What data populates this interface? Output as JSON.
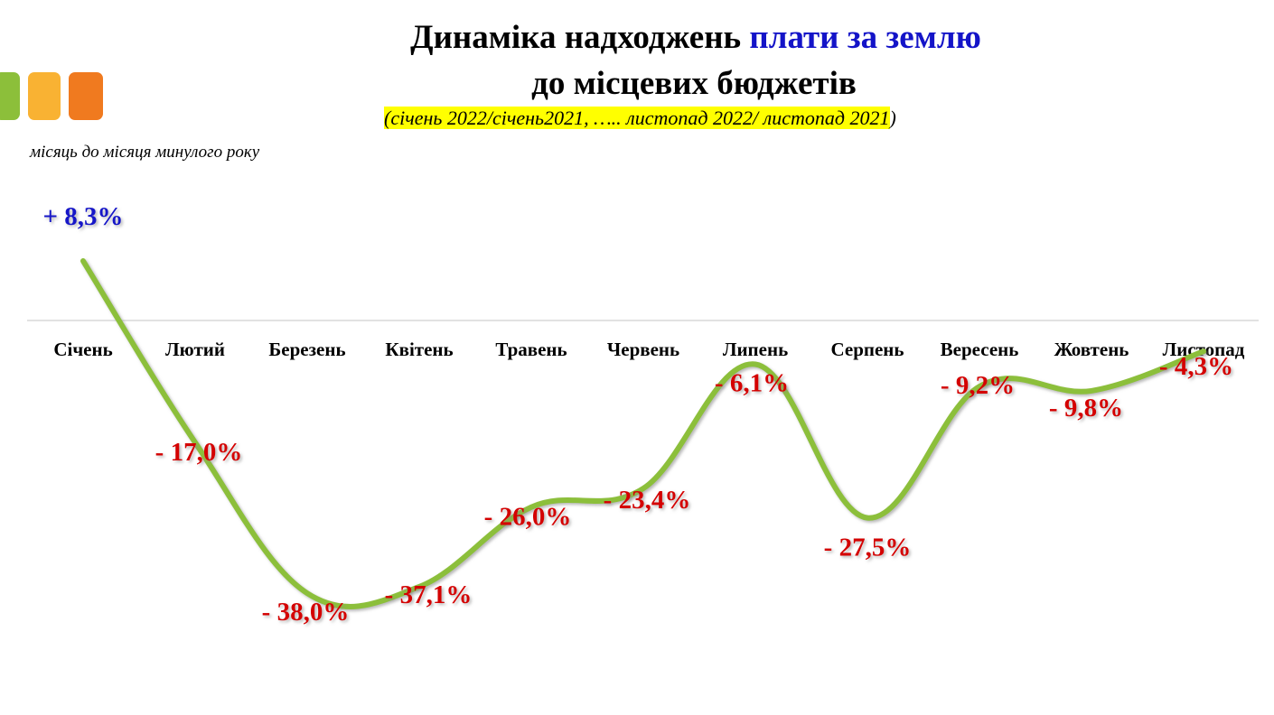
{
  "title": {
    "part1": "Динаміка надходжень ",
    "part2": "плати за землю",
    "line2": "до місцевих бюджетів",
    "subtitle_open": "(",
    "subtitle_main": "січень 2022/січень2021, ….. листопад 2022/ листопад 2021",
    "subtitle_close": ")"
  },
  "note": "місяць до місяця минулого року",
  "colors": {
    "line": "#8cbf3a",
    "positive_label": "#1414c8",
    "negative_label": "#d40000",
    "title_accent": "#1414c8",
    "highlight": "#ffff00",
    "deco": [
      "#8cbf3a",
      "#f9b233",
      "#f07a1f"
    ]
  },
  "chart_data": {
    "type": "line",
    "title": "Динаміка надходжень плати за землю до місцевих бюджетів",
    "categories": [
      "Січень",
      "Лютий",
      "Березень",
      "Квітень",
      "Травень",
      "Червень",
      "Липень",
      "Серпень",
      "Вересень",
      "Жовтень",
      "Листопад"
    ],
    "values": [
      8.3,
      -17.0,
      -38.0,
      -37.1,
      -26.0,
      -23.4,
      -6.1,
      -27.5,
      -9.2,
      -9.8,
      -4.3
    ],
    "data_labels": [
      "+ 8,3%",
      "- 17,0%",
      "- 38,0%",
      "- 37,1%",
      "- 26,0%",
      "- 23,4%",
      "- 6,1%",
      "- 27,5%",
      "- 9,2%",
      "- 9,8%",
      "- 4,3%"
    ],
    "unit": "%",
    "xlabel": "",
    "ylabel": "",
    "grid": false,
    "legend": "none"
  }
}
